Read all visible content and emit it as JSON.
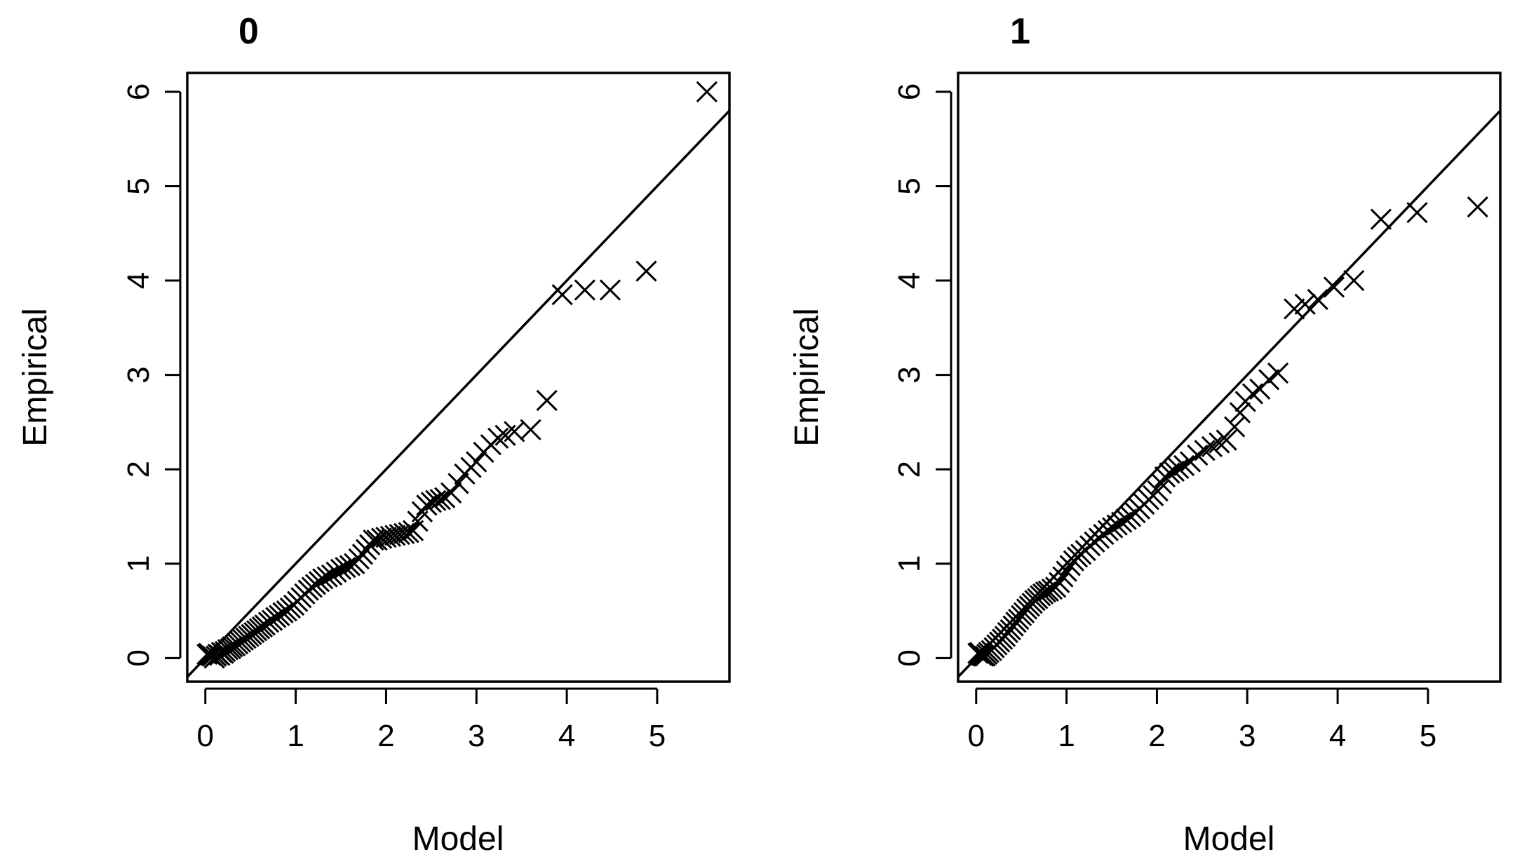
{
  "chart_data": [
    {
      "type": "scatter",
      "title": "0",
      "xlabel": "Model",
      "ylabel": "Empirical",
      "marker": "x",
      "reference_line": {
        "slope": 1,
        "intercept": 0
      },
      "xlim": [
        -0.2,
        5.8
      ],
      "ylim": [
        -0.25,
        6.2
      ],
      "xticks": [
        0,
        1,
        2,
        3,
        4,
        5
      ],
      "yticks": [
        0,
        1,
        2,
        3,
        4,
        5,
        6
      ],
      "grid": false,
      "legend": "none",
      "points": [
        [
          0.02,
          0.04
        ],
        [
          0.04,
          0.05
        ],
        [
          0.06,
          0.03
        ],
        [
          0.08,
          0.02
        ],
        [
          0.1,
          0.0
        ],
        [
          0.12,
          0.02
        ],
        [
          0.14,
          0.04
        ],
        [
          0.16,
          0.03
        ],
        [
          0.18,
          0.06
        ],
        [
          0.2,
          0.05
        ],
        [
          0.22,
          0.07
        ],
        [
          0.25,
          0.09
        ],
        [
          0.28,
          0.1
        ],
        [
          0.3,
          0.12
        ],
        [
          0.33,
          0.13
        ],
        [
          0.36,
          0.15
        ],
        [
          0.39,
          0.17
        ],
        [
          0.42,
          0.19
        ],
        [
          0.45,
          0.21
        ],
        [
          0.48,
          0.23
        ],
        [
          0.51,
          0.25
        ],
        [
          0.54,
          0.27
        ],
        [
          0.57,
          0.29
        ],
        [
          0.6,
          0.31
        ],
        [
          0.63,
          0.33
        ],
        [
          0.66,
          0.35
        ],
        [
          0.7,
          0.38
        ],
        [
          0.74,
          0.4
        ],
        [
          0.78,
          0.43
        ],
        [
          0.82,
          0.45
        ],
        [
          0.86,
          0.48
        ],
        [
          0.9,
          0.5
        ],
        [
          0.94,
          0.53
        ],
        [
          0.98,
          0.56
        ],
        [
          1.02,
          0.6
        ],
        [
          1.06,
          0.64
        ],
        [
          1.1,
          0.68
        ],
        [
          1.14,
          0.72
        ],
        [
          1.18,
          0.75
        ],
        [
          1.22,
          0.78
        ],
        [
          1.26,
          0.81
        ],
        [
          1.3,
          0.84
        ],
        [
          1.35,
          0.86
        ],
        [
          1.4,
          0.88
        ],
        [
          1.45,
          0.91
        ],
        [
          1.5,
          0.94
        ],
        [
          1.55,
          0.96
        ],
        [
          1.6,
          0.98
        ],
        [
          1.65,
          1.0
        ],
        [
          1.7,
          1.05
        ],
        [
          1.74,
          1.1
        ],
        [
          1.78,
          1.15
        ],
        [
          1.82,
          1.2
        ],
        [
          1.86,
          1.25
        ],
        [
          1.9,
          1.25
        ],
        [
          1.95,
          1.27
        ],
        [
          2.0,
          1.28
        ],
        [
          2.05,
          1.29
        ],
        [
          2.1,
          1.3
        ],
        [
          2.15,
          1.31
        ],
        [
          2.2,
          1.32
        ],
        [
          2.25,
          1.33
        ],
        [
          2.3,
          1.35
        ],
        [
          2.35,
          1.45
        ],
        [
          2.4,
          1.55
        ],
        [
          2.45,
          1.62
        ],
        [
          2.5,
          1.65
        ],
        [
          2.55,
          1.67
        ],
        [
          2.6,
          1.68
        ],
        [
          2.65,
          1.7
        ],
        [
          2.72,
          1.75
        ],
        [
          2.8,
          1.85
        ],
        [
          2.87,
          1.95
        ],
        [
          2.94,
          2.02
        ],
        [
          3.0,
          2.08
        ],
        [
          3.08,
          2.18
        ],
        [
          3.16,
          2.26
        ],
        [
          3.24,
          2.33
        ],
        [
          3.32,
          2.36
        ],
        [
          3.42,
          2.4
        ],
        [
          3.6,
          2.42
        ],
        [
          3.78,
          2.73
        ],
        [
          3.95,
          3.85
        ],
        [
          4.2,
          3.9
        ],
        [
          4.48,
          3.9
        ],
        [
          4.88,
          4.1
        ],
        [
          5.55,
          6.0
        ]
      ]
    },
    {
      "type": "scatter",
      "title": "1",
      "xlabel": "Model",
      "ylabel": "Empirical",
      "marker": "x",
      "reference_line": {
        "slope": 1,
        "intercept": 0
      },
      "xlim": [
        -0.2,
        5.8
      ],
      "ylim": [
        -0.25,
        6.2
      ],
      "xticks": [
        0,
        1,
        2,
        3,
        4,
        5
      ],
      "yticks": [
        0,
        1,
        2,
        3,
        4,
        5,
        6
      ],
      "grid": false,
      "legend": "none",
      "points": [
        [
          0.02,
          0.05
        ],
        [
          0.04,
          0.06
        ],
        [
          0.06,
          0.03
        ],
        [
          0.08,
          0.02
        ],
        [
          0.1,
          0.02
        ],
        [
          0.12,
          0.04
        ],
        [
          0.14,
          0.06
        ],
        [
          0.17,
          0.08
        ],
        [
          0.2,
          0.11
        ],
        [
          0.23,
          0.14
        ],
        [
          0.26,
          0.17
        ],
        [
          0.29,
          0.2
        ],
        [
          0.32,
          0.23
        ],
        [
          0.35,
          0.27
        ],
        [
          0.38,
          0.3
        ],
        [
          0.41,
          0.34
        ],
        [
          0.44,
          0.38
        ],
        [
          0.47,
          0.41
        ],
        [
          0.5,
          0.45
        ],
        [
          0.53,
          0.48
        ],
        [
          0.56,
          0.52
        ],
        [
          0.59,
          0.55
        ],
        [
          0.62,
          0.58
        ],
        [
          0.65,
          0.61
        ],
        [
          0.68,
          0.63
        ],
        [
          0.71,
          0.66
        ],
        [
          0.74,
          0.68
        ],
        [
          0.77,
          0.7
        ],
        [
          0.8,
          0.71
        ],
        [
          0.84,
          0.73
        ],
        [
          0.88,
          0.75
        ],
        [
          0.92,
          0.8
        ],
        [
          0.96,
          0.86
        ],
        [
          1.0,
          0.92
        ],
        [
          1.04,
          0.98
        ],
        [
          1.08,
          1.03
        ],
        [
          1.12,
          1.07
        ],
        [
          1.16,
          1.1
        ],
        [
          1.21,
          1.14
        ],
        [
          1.26,
          1.19
        ],
        [
          1.31,
          1.23
        ],
        [
          1.36,
          1.27
        ],
        [
          1.41,
          1.31
        ],
        [
          1.46,
          1.35
        ],
        [
          1.51,
          1.38
        ],
        [
          1.56,
          1.41
        ],
        [
          1.61,
          1.44
        ],
        [
          1.66,
          1.47
        ],
        [
          1.71,
          1.5
        ],
        [
          1.76,
          1.54
        ],
        [
          1.81,
          1.58
        ],
        [
          1.86,
          1.63
        ],
        [
          1.91,
          1.68
        ],
        [
          1.96,
          1.72
        ],
        [
          2.01,
          1.77
        ],
        [
          2.05,
          1.85
        ],
        [
          2.09,
          1.92
        ],
        [
          2.14,
          1.96
        ],
        [
          2.19,
          1.98
        ],
        [
          2.24,
          2.01
        ],
        [
          2.3,
          2.04
        ],
        [
          2.37,
          2.08
        ],
        [
          2.45,
          2.15
        ],
        [
          2.53,
          2.2
        ],
        [
          2.61,
          2.24
        ],
        [
          2.69,
          2.28
        ],
        [
          2.77,
          2.31
        ],
        [
          2.86,
          2.45
        ],
        [
          2.92,
          2.6
        ],
        [
          2.98,
          2.72
        ],
        [
          3.06,
          2.8
        ],
        [
          3.14,
          2.85
        ],
        [
          3.24,
          2.95
        ],
        [
          3.34,
          3.02
        ],
        [
          3.52,
          3.7
        ],
        [
          3.64,
          3.75
        ],
        [
          3.78,
          3.8
        ],
        [
          3.96,
          3.93
        ],
        [
          4.18,
          4.0
        ],
        [
          4.48,
          4.65
        ],
        [
          4.88,
          4.72
        ],
        [
          5.55,
          4.78
        ]
      ]
    }
  ]
}
